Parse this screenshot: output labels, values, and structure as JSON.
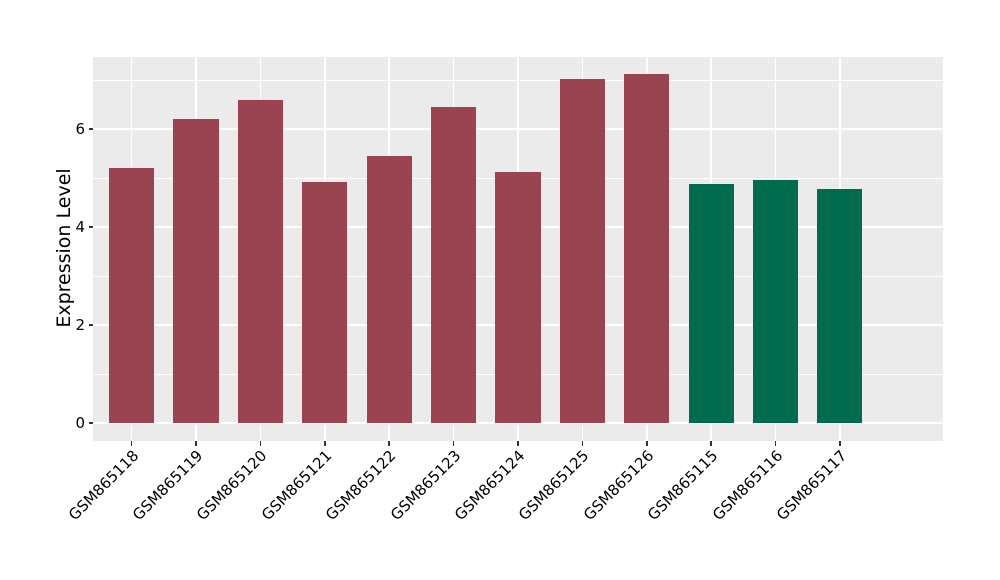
{
  "figure": {
    "background": "#FFFFFF"
  },
  "chart_data": {
    "type": "bar",
    "title": "",
    "xlabel": "",
    "ylabel": "Expression Level",
    "categories": [
      "GSM865118",
      "GSM865119",
      "GSM865120",
      "GSM865121",
      "GSM865122",
      "GSM865123",
      "GSM865124",
      "GSM865125",
      "GSM865126",
      "GSM865115",
      "GSM865116",
      "GSM865117"
    ],
    "values": [
      5.21,
      6.2,
      6.59,
      4.92,
      5.45,
      6.45,
      5.12,
      7.02,
      7.13,
      4.87,
      4.95,
      4.78
    ],
    "bar_colors": [
      "#9B4451",
      "#9B4451",
      "#9B4451",
      "#9B4451",
      "#9B4451",
      "#9B4451",
      "#9B4451",
      "#9B4451",
      "#9B4451",
      "#006B4D",
      "#006B4D",
      "#006B4D"
    ],
    "ytick_labels": [
      "0",
      "2",
      "4",
      "6"
    ],
    "yticks": [
      0,
      2,
      4,
      6
    ],
    "minor_gridlines": [
      1,
      3,
      5,
      7
    ],
    "ylim": [
      -0.37,
      7.47
    ],
    "grid": true,
    "legend": "none",
    "plot_background": "#EBEBEB",
    "gridline_color": "#FFFFFF",
    "axis_text_color": "#000000"
  }
}
